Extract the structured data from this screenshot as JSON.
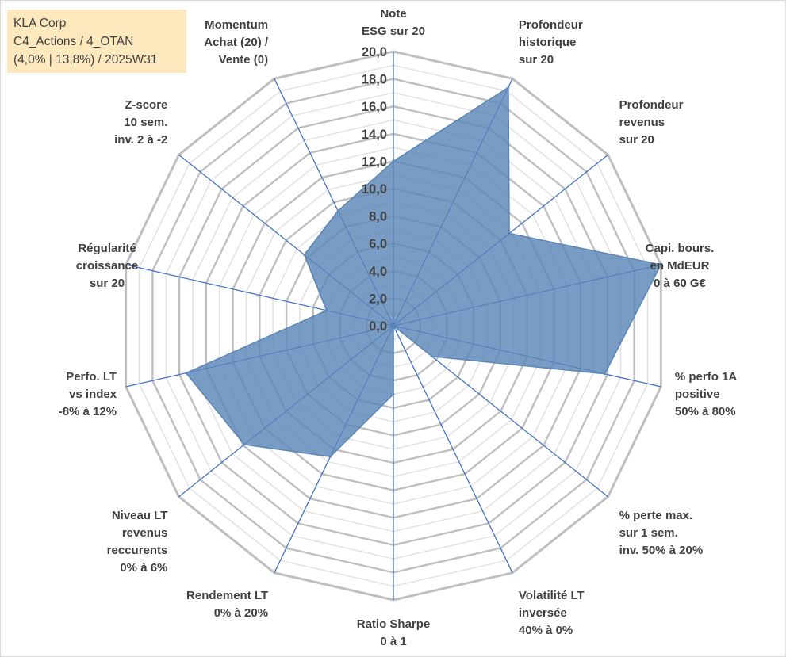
{
  "info": {
    "company": "KLA Corp",
    "classification": "C4_Actions / 4_OTAN",
    "stats": "(4,0% | 13,8%) / 2025W31"
  },
  "colors": {
    "fill": "#5b86b8",
    "stroke": "#5b86b8",
    "spoke": "#4472c4",
    "grid_major": "#bfbfbf",
    "grid_minor": "#e3e3e3",
    "info_background": "#fde9bd",
    "text": "#404040"
  },
  "chart_data": {
    "type": "radar",
    "title": "",
    "rlim": [
      0,
      20
    ],
    "ticks": [
      "0,0",
      "2,0",
      "4,0",
      "6,0",
      "8,0",
      "10,0",
      "12,0",
      "14,0",
      "16,0",
      "18,0",
      "20,0"
    ],
    "tick_step": 2,
    "grid": true,
    "categories": [
      [
        "Note",
        "ESG sur 20"
      ],
      [
        "Profondeur",
        "historique",
        "sur 20"
      ],
      [
        "Profondeur",
        "revenus",
        "sur 20"
      ],
      [
        "Capi. bours.",
        "en MdEUR",
        "0 à 60 G€"
      ],
      [
        "% perfo 1A",
        "positive",
        "50% à 80%"
      ],
      [
        "% perte max.",
        "sur 1 sem.",
        "inv. 50% à 20%"
      ],
      [
        "Volatilité LT",
        "inversée",
        "40% à 0%"
      ],
      [
        "Ratio Sharpe",
        "0 à 1"
      ],
      [
        "Rendement LT",
        "0% à 20%"
      ],
      [
        "Niveau LT",
        "revenus",
        "reccurents",
        "0% à 6%"
      ],
      [
        "Perfo. LT",
        "vs index",
        "-8% à 12%"
      ],
      [
        "Régularité",
        "croissance",
        "sur 20"
      ],
      [
        "Z-score",
        "10 sem.",
        "inv. 2 à -2"
      ],
      [
        "Momentum",
        "Achat (20) /",
        "Vente (0)"
      ]
    ],
    "series": [
      {
        "values": [
          12.0,
          19.3,
          10.8,
          20.0,
          15.8,
          3.6,
          0.0,
          5.0,
          10.6,
          13.9,
          15.5,
          5.0,
          8.3,
          9.3
        ]
      }
    ]
  }
}
